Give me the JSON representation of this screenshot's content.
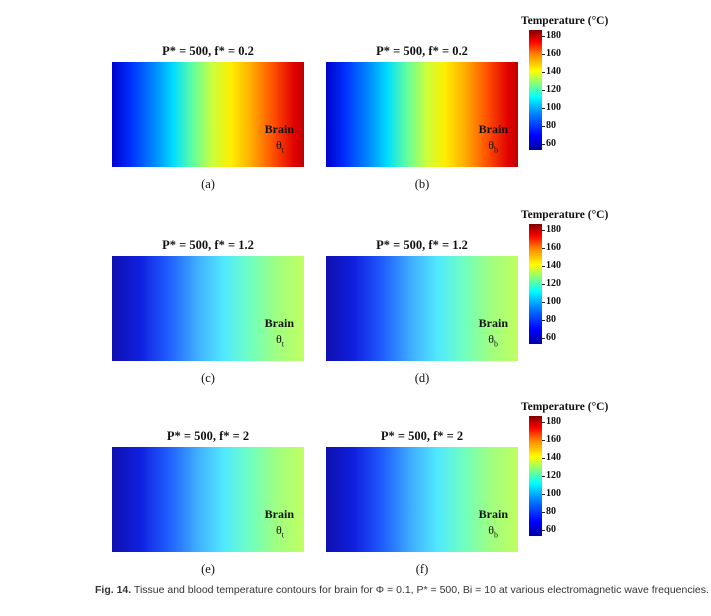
{
  "rows": [
    {
      "panels": [
        {
          "title": "P* = 500, f* = 0.2",
          "sub": "(a)",
          "material": "Brain",
          "symbol": "θ",
          "symbol_sub": "t",
          "gradient": "linear-gradient(to right,#0000cc 0%,#0030ff 10%,#0088ff 22%,#00ddff 32%,#60ffa0 42%,#c8ff40 52%,#ffee00 62%,#ffb000 72%,#ff5000 84%,#e00000 95%,#c00000 100%)"
        },
        {
          "title": "P* = 500, f* = 0.2",
          "sub": "(b)",
          "material": "Brain",
          "symbol": "θ",
          "symbol_sub": "b",
          "gradient": "linear-gradient(to right,#0000cc 0%,#0030ff 10%,#0088ff 22%,#00ddff 32%,#60ffa0 42%,#c8ff40 52%,#ffee00 62%,#ffb000 72%,#ff5000 84%,#e00000 95%,#c00000 100%)"
        }
      ],
      "colorbar": {
        "title": "Temperature (°C)",
        "ticks": [
          "180",
          "160",
          "140",
          "120",
          "100",
          "80",
          "60"
        ]
      }
    },
    {
      "panels": [
        {
          "title": "P* = 500, f* = 1.2",
          "sub": "(c)",
          "material": "Brain",
          "symbol": "θ",
          "symbol_sub": "t",
          "gradient": "linear-gradient(to right,#1010b0 0%,#1020e0 15%,#2060ff 30%,#40b0ff 45%,#50e8ff 58%,#70ffc0 72%,#a0ff80 86%,#c0ff60 100%)"
        },
        {
          "title": "P* = 500, f* = 1.2",
          "sub": "(d)",
          "material": "Brain",
          "symbol": "θ",
          "symbol_sub": "b",
          "gradient": "linear-gradient(to right,#1010b0 0%,#1020e0 15%,#2060ff 30%,#40b0ff 45%,#50e8ff 58%,#70ffc0 72%,#a0ff80 86%,#c0ff60 100%)"
        }
      ],
      "colorbar": {
        "title": "Temperature (°C)",
        "ticks": [
          "180",
          "160",
          "140",
          "120",
          "100",
          "80",
          "60"
        ]
      }
    },
    {
      "panels": [
        {
          "title": "P* = 500, f* = 2",
          "sub": "(e)",
          "material": "Brain",
          "symbol": "θ",
          "symbol_sub": "t",
          "gradient": "linear-gradient(to right,#1010b0 0%,#1020e0 15%,#2060ff 30%,#40b0ff 45%,#50e8ff 58%,#70ffc0 72%,#a0ff80 86%,#c0ff60 100%)"
        },
        {
          "title": "P* = 500, f* = 2",
          "sub": "(f)",
          "material": "Brain",
          "symbol": "θ",
          "symbol_sub": "b",
          "gradient": "linear-gradient(to right,#1010b0 0%,#1020e0 15%,#2060ff 30%,#40b0ff 45%,#50e8ff 58%,#70ffc0 72%,#a0ff80 86%,#c0ff60 100%)"
        }
      ],
      "colorbar": {
        "title": "Temperature (°C)",
        "ticks": [
          "180",
          "160",
          "140",
          "120",
          "100",
          "80",
          "60"
        ]
      }
    }
  ],
  "caption": {
    "label": "Fig. 14.",
    "text": "Tissue and blood temperature contours for brain for Φ = 0.1, P* = 500, Bi = 10 at various electromagnetic wave frequencies."
  }
}
